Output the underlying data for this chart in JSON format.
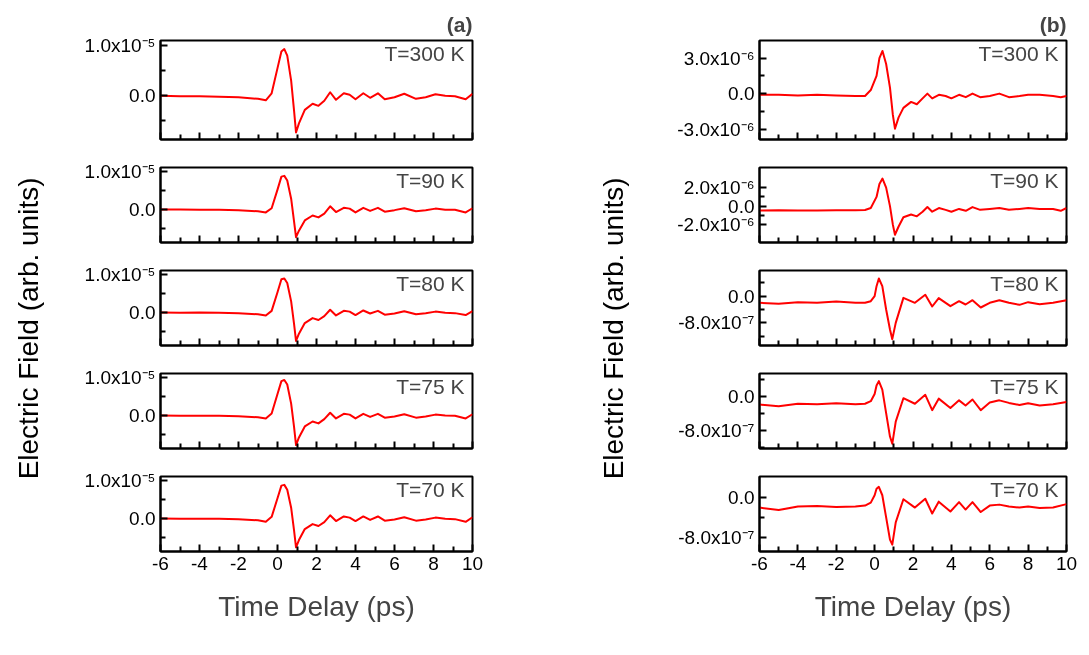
{
  "chart_data": [
    {
      "type": "line",
      "title": "(a)",
      "color": "#ff0000",
      "tick_labels": "y",
      "annotations": [
        "T=300 K"
      ],
      "xlim": [
        -6,
        10
      ],
      "ylim": [
        -8.7e-06,
        1.1e-05
      ],
      "xticks": [
        -6,
        {
          "value": -5,
          "label": null
        },
        -4,
        {
          "value": -3,
          "label": null
        },
        -2,
        {
          "value": -1,
          "label": null
        },
        0,
        {
          "value": 1,
          "label": null
        },
        2,
        {
          "value": 3,
          "label": null
        },
        4,
        {
          "value": 5,
          "label": null
        },
        6,
        {
          "value": 7,
          "label": null
        },
        8,
        {
          "value": 9,
          "label": null
        },
        10
      ],
      "yticks": [
        {
          "value": -5e-06,
          "label": null
        },
        {
          "value": 0,
          "label": "0.0"
        },
        {
          "value": 5e-06,
          "label": null
        },
        {
          "value": 1e-05,
          "label": "1.0x10⁻⁵"
        }
      ],
      "x": [
        -6,
        -5,
        -4,
        -3,
        -2,
        -1,
        -0.6,
        -0.3,
        0,
        0.2,
        0.35,
        0.5,
        0.7,
        0.85,
        0.95,
        1.1,
        1.4,
        1.8,
        2.1,
        2.4,
        2.7,
        3.0,
        3.4,
        3.7,
        4.0,
        4.4,
        4.75,
        5.15,
        5.5,
        6.0,
        6.5,
        7.1,
        7.6,
        8.1,
        8.6,
        9.1,
        9.65,
        10
      ],
      "values": [
        0,
        -1e-07,
        -1e-07,
        -2e-07,
        -3e-07,
        -6e-07,
        -9e-07,
        5e-07,
        5.5e-06,
        8.8e-06,
        9.3e-06,
        8e-06,
        3e-06,
        -3e-06,
        -7.3e-06,
        -5.5e-06,
        -2.8e-06,
        -1.6e-06,
        -2e-06,
        -1e-06,
        7e-07,
        -8e-07,
        5e-07,
        2e-07,
        -7e-07,
        5e-07,
        -4e-07,
        5e-07,
        -7e-07,
        -3e-07,
        4e-07,
        -6e-07,
        -3e-07,
        3e-07,
        0,
        -1e-07,
        -7e-07,
        4e-07
      ]
    },
    {
      "type": "line",
      "color": "#ff0000",
      "tick_labels": "y",
      "annotations": [
        "T=90 K"
      ],
      "xlim": [
        -6,
        10
      ],
      "ylim": [
        -8.7e-06,
        1.1e-05
      ],
      "xticks": [
        -6,
        {
          "value": -5,
          "label": null
        },
        -4,
        {
          "value": -3,
          "label": null
        },
        -2,
        {
          "value": -1,
          "label": null
        },
        0,
        {
          "value": 1,
          "label": null
        },
        2,
        {
          "value": 3,
          "label": null
        },
        4,
        {
          "value": 5,
          "label": null
        },
        6,
        {
          "value": 7,
          "label": null
        },
        8,
        {
          "value": 9,
          "label": null
        },
        10
      ],
      "yticks": [
        {
          "value": -5e-06,
          "label": null
        },
        {
          "value": 0,
          "label": "0.0"
        },
        {
          "value": 5e-06,
          "label": null
        },
        {
          "value": 1e-05,
          "label": "1.0x10⁻⁵"
        }
      ],
      "x": [
        -6,
        -5,
        -4,
        -3,
        -2,
        -1,
        -0.6,
        -0.3,
        0,
        0.2,
        0.35,
        0.5,
        0.7,
        0.85,
        0.95,
        1.1,
        1.4,
        1.8,
        2.1,
        2.4,
        2.7,
        3.0,
        3.4,
        3.7,
        4.0,
        4.4,
        4.75,
        5.15,
        5.5,
        6.0,
        6.5,
        7.1,
        7.6,
        8.1,
        8.6,
        9.1,
        9.65,
        10
      ],
      "values": [
        0,
        0,
        -1e-07,
        -1e-07,
        -2e-07,
        -5e-07,
        -8e-07,
        3e-07,
        5.2e-06,
        8.6e-06,
        8.8e-06,
        7.6e-06,
        2.8e-06,
        -3.2e-06,
        -7.3e-06,
        -5.6e-06,
        -2.9e-06,
        -1.6e-06,
        -2.1e-06,
        -1.1e-06,
        8e-07,
        -7e-07,
        4e-07,
        2e-07,
        -8e-07,
        4e-07,
        -4e-07,
        4e-07,
        -6e-07,
        -2e-07,
        3e-07,
        -5e-07,
        -2e-07,
        2e-07,
        -1e-07,
        -1e-07,
        -8e-07,
        3e-07
      ]
    },
    {
      "type": "line",
      "color": "#ff0000",
      "tick_labels": "y",
      "ylabel": "Electric Field (arb. units)",
      "annotations": [
        "T=80 K"
      ],
      "xlim": [
        -6,
        10
      ],
      "ylim": [
        -8.7e-06,
        1.1e-05
      ],
      "xticks": [
        -6,
        {
          "value": -5,
          "label": null
        },
        -4,
        {
          "value": -3,
          "label": null
        },
        -2,
        {
          "value": -1,
          "label": null
        },
        0,
        {
          "value": 1,
          "label": null
        },
        2,
        {
          "value": 3,
          "label": null
        },
        4,
        {
          "value": 5,
          "label": null
        },
        6,
        {
          "value": 7,
          "label": null
        },
        8,
        {
          "value": 9,
          "label": null
        },
        10
      ],
      "yticks": [
        {
          "value": -5e-06,
          "label": null
        },
        {
          "value": 0,
          "label": "0.0"
        },
        {
          "value": 5e-06,
          "label": null
        },
        {
          "value": 1e-05,
          "label": "1.0x10⁻⁵"
        }
      ],
      "x": [
        -6,
        -5,
        -4,
        -3,
        -2,
        -1,
        -0.6,
        -0.3,
        0,
        0.2,
        0.35,
        0.5,
        0.7,
        0.85,
        0.95,
        1.1,
        1.4,
        1.8,
        2.1,
        2.4,
        2.7,
        3.0,
        3.4,
        3.7,
        4.0,
        4.4,
        4.75,
        5.15,
        5.5,
        6.0,
        6.5,
        7.1,
        7.6,
        8.1,
        8.6,
        9.1,
        9.65,
        10
      ],
      "values": [
        0,
        -1e-07,
        0,
        -1e-07,
        -2e-07,
        -5e-07,
        -8e-07,
        4e-07,
        5.3e-06,
        8.7e-06,
        8.9e-06,
        7.7e-06,
        2.9e-06,
        -3.1e-06,
        -7.5e-06,
        -5.6e-06,
        -2.8e-06,
        -1.5e-06,
        -2e-06,
        -1e-06,
        7e-07,
        -8e-07,
        4e-07,
        2e-07,
        -7e-07,
        5e-07,
        -3e-07,
        4e-07,
        -6e-07,
        -3e-07,
        3e-07,
        -5e-07,
        -2e-07,
        2e-07,
        -1e-07,
        -2e-07,
        -7e-07,
        3e-07
      ]
    },
    {
      "type": "line",
      "color": "#ff0000",
      "tick_labels": "y",
      "annotations": [
        "T=75 K"
      ],
      "xlim": [
        -6,
        10
      ],
      "ylim": [
        -8.7e-06,
        1.1e-05
      ],
      "xticks": [
        -6,
        {
          "value": -5,
          "label": null
        },
        -4,
        {
          "value": -3,
          "label": null
        },
        -2,
        {
          "value": -1,
          "label": null
        },
        0,
        {
          "value": 1,
          "label": null
        },
        2,
        {
          "value": 3,
          "label": null
        },
        4,
        {
          "value": 5,
          "label": null
        },
        6,
        {
          "value": 7,
          "label": null
        },
        8,
        {
          "value": 9,
          "label": null
        },
        10
      ],
      "yticks": [
        {
          "value": -5e-06,
          "label": null
        },
        {
          "value": 0,
          "label": "0.0"
        },
        {
          "value": 5e-06,
          "label": null
        },
        {
          "value": 1e-05,
          "label": "1.0x10⁻⁵"
        }
      ],
      "x": [
        -6,
        -5,
        -4,
        -3,
        -2,
        -1,
        -0.6,
        -0.3,
        0,
        0.2,
        0.35,
        0.5,
        0.7,
        0.85,
        0.95,
        1.1,
        1.4,
        1.8,
        2.1,
        2.4,
        2.7,
        3.0,
        3.4,
        3.7,
        4.0,
        4.4,
        4.75,
        5.15,
        5.5,
        6.0,
        6.5,
        7.1,
        7.6,
        8.1,
        8.6,
        9.1,
        9.65,
        10
      ],
      "values": [
        0,
        -1e-07,
        -1e-07,
        -1e-07,
        -2e-07,
        -5e-07,
        -8e-07,
        5e-07,
        5.6e-06,
        9e-06,
        9.3e-06,
        8.1e-06,
        3.1e-06,
        -3.1e-06,
        -7.8e-06,
        -5.8e-06,
        -2.9e-06,
        -1.6e-06,
        -2.1e-06,
        -1e-06,
        7e-07,
        -8e-07,
        4e-07,
        2e-07,
        -8e-07,
        4e-07,
        -4e-07,
        4e-07,
        -6e-07,
        -3e-07,
        3e-07,
        -6e-07,
        -3e-07,
        2e-07,
        0,
        -1e-07,
        -8e-07,
        3e-07
      ]
    },
    {
      "type": "line",
      "color": "#ff0000",
      "xlabel": "Time Delay (ps)",
      "annotations": [
        "T=70 K"
      ],
      "xlim": [
        -6,
        10
      ],
      "ylim": [
        -8.7e-06,
        1.1e-05
      ],
      "xticks": [
        -6,
        {
          "value": -5,
          "label": null
        },
        -4,
        {
          "value": -3,
          "label": null
        },
        -2,
        {
          "value": -1,
          "label": null
        },
        0,
        {
          "value": 1,
          "label": null
        },
        2,
        {
          "value": 3,
          "label": null
        },
        4,
        {
          "value": 5,
          "label": null
        },
        6,
        {
          "value": 7,
          "label": null
        },
        8,
        {
          "value": 9,
          "label": null
        },
        10
      ],
      "yticks": [
        {
          "value": -5e-06,
          "label": null
        },
        {
          "value": 0,
          "label": "0.0"
        },
        {
          "value": 5e-06,
          "label": null
        },
        {
          "value": 1e-05,
          "label": "1.0x10⁻⁵"
        }
      ],
      "x": [
        -6,
        -5,
        -4,
        -3,
        -2,
        -1,
        -0.6,
        -0.3,
        0,
        0.2,
        0.35,
        0.5,
        0.7,
        0.85,
        0.95,
        1.1,
        1.4,
        1.8,
        2.1,
        2.4,
        2.7,
        3.0,
        3.4,
        3.7,
        4.0,
        4.4,
        4.75,
        5.15,
        5.5,
        6.0,
        6.5,
        7.1,
        7.6,
        8.1,
        8.6,
        9.1,
        9.65,
        10
      ],
      "values": [
        0,
        -1e-07,
        -1e-07,
        -1e-07,
        -2e-07,
        -5e-07,
        -9e-07,
        4e-07,
        5.3e-06,
        8.6e-06,
        8.8e-06,
        7.5e-06,
        2.8e-06,
        -3.2e-06,
        -7.6e-06,
        -5.7e-06,
        -2.8e-06,
        -1.5e-06,
        -2e-06,
        -1e-06,
        8e-07,
        -7e-07,
        5e-07,
        2e-07,
        -7e-07,
        5e-07,
        -4e-07,
        5e-07,
        -6e-07,
        -3e-07,
        3e-07,
        -6e-07,
        -3e-07,
        2e-07,
        -1e-07,
        -2e-07,
        -9e-07,
        3e-07
      ]
    },
    {
      "type": "line",
      "title": "(b)",
      "color": "#ff0000",
      "tick_labels": "y",
      "annotations": [
        "T=300 K"
      ],
      "xlim": [
        -6,
        10
      ],
      "ylim": [
        -3.87e-06,
        4.48e-06
      ],
      "xticks": [
        -6,
        {
          "value": -5,
          "label": null
        },
        -4,
        {
          "value": -3,
          "label": null
        },
        -2,
        {
          "value": -1,
          "label": null
        },
        0,
        {
          "value": 1,
          "label": null
        },
        2,
        {
          "value": 3,
          "label": null
        },
        4,
        {
          "value": 5,
          "label": null
        },
        6,
        {
          "value": 7,
          "label": null
        },
        8,
        {
          "value": 9,
          "label": null
        },
        10
      ],
      "yticks": [
        {
          "value": -3e-06,
          "label": "-3.0x10⁻⁶"
        },
        {
          "value": -1.5e-06,
          "label": null
        },
        {
          "value": 0,
          "label": "0.0"
        },
        {
          "value": 1.5e-06,
          "label": null
        },
        {
          "value": 3e-06,
          "label": "3.0x10⁻⁶"
        }
      ],
      "x": [
        -6,
        -5,
        -4,
        -3,
        -2,
        -1,
        -0.5,
        -0.2,
        0.1,
        0.25,
        0.41,
        0.6,
        0.8,
        0.95,
        1.06,
        1.25,
        1.5,
        1.9,
        2.2,
        2.5,
        2.75,
        3.0,
        3.35,
        3.7,
        4.0,
        4.4,
        4.75,
        5.1,
        5.5,
        6.0,
        6.5,
        7.0,
        7.55,
        8.0,
        8.6,
        9.3,
        9.7,
        10
      ],
      "values": [
        -1e-07,
        -1e-07,
        -1.5e-07,
        -1e-07,
        -1.5e-07,
        -2e-07,
        -2e-07,
        3e-07,
        1.5e-06,
        3e-06,
        3.6e-06,
        2.5e-06,
        5e-07,
        -1.8e-06,
        -2.96e-06,
        -2e-06,
        -1.2e-06,
        -7e-07,
        -9e-07,
        -4e-07,
        0,
        -4e-07,
        -1e-07,
        -2e-07,
        -4e-07,
        -1e-07,
        -3e-07,
        0,
        -3e-07,
        -2e-07,
        0,
        -3e-07,
        -2e-07,
        -1e-07,
        -1e-07,
        -2e-07,
        -3e-07,
        -2e-07
      ]
    },
    {
      "type": "line",
      "color": "#ff0000",
      "tick_labels": "y",
      "annotations": [
        "T=90 K"
      ],
      "xlim": [
        -6,
        10
      ],
      "ylim": [
        -3.93e-06,
        4.18e-06
      ],
      "xticks": [
        -6,
        {
          "value": -5,
          "label": null
        },
        -4,
        {
          "value": -3,
          "label": null
        },
        -2,
        {
          "value": -1,
          "label": null
        },
        0,
        {
          "value": 1,
          "label": null
        },
        2,
        {
          "value": 3,
          "label": null
        },
        4,
        {
          "value": 5,
          "label": null
        },
        6,
        {
          "value": 7,
          "label": null
        },
        8,
        {
          "value": 9,
          "label": null
        },
        10
      ],
      "yticks": [
        {
          "value": -2e-06,
          "label": "-2.0x10⁻⁶"
        },
        {
          "value": -1e-06,
          "label": null
        },
        {
          "value": 0,
          "label": "0.0"
        },
        {
          "value": 1e-06,
          "label": null
        },
        {
          "value": 2e-06,
          "label": "2.0x10⁻⁶"
        }
      ],
      "x": [
        -6,
        -5,
        -4,
        -3,
        -2,
        -1,
        -0.5,
        -0.2,
        0.1,
        0.25,
        0.41,
        0.6,
        0.8,
        0.95,
        1.06,
        1.25,
        1.5,
        1.9,
        2.2,
        2.5,
        2.75,
        3.0,
        3.35,
        3.7,
        4.0,
        4.4,
        4.75,
        5.1,
        5.5,
        6.0,
        6.5,
        7.0,
        7.55,
        8.0,
        8.6,
        9.3,
        9.7,
        10
      ],
      "values": [
        -4.7e-07,
        -4.5e-07,
        -4.8e-07,
        -4.6e-07,
        -4.5e-07,
        -4.5e-07,
        -4.2e-07,
        -2e-07,
        1e-06,
        2.4e-06,
        2.98e-06,
        2e-06,
        0,
        -2e-06,
        -3.09e-06,
        -2.2e-06,
        -1.2e-06,
        -9e-07,
        -1.1e-06,
        -6e-07,
        -1e-07,
        -6e-07,
        -2e-07,
        -4e-07,
        -6e-07,
        -3e-07,
        -5e-07,
        -1e-07,
        -4e-07,
        -3e-07,
        -2e-07,
        -4e-07,
        -3e-07,
        -2e-07,
        -3e-07,
        -3e-07,
        -5e-07,
        -2e-07
      ]
    },
    {
      "type": "line",
      "color": "#ff0000",
      "tick_labels": "y",
      "ylabel": "Electric Field (arb. units)",
      "annotations": [
        "T=80 K"
      ],
      "xlim": [
        -6,
        10
      ],
      "ylim": [
        -1.48e-06,
        7.7e-07
      ],
      "xticks": [
        -6,
        {
          "value": -5,
          "label": null
        },
        -4,
        {
          "value": -3,
          "label": null
        },
        -2,
        {
          "value": -1,
          "label": null
        },
        0,
        {
          "value": 1,
          "label": null
        },
        2,
        {
          "value": 3,
          "label": null
        },
        4,
        {
          "value": 5,
          "label": null
        },
        6,
        {
          "value": 7,
          "label": null
        },
        8,
        {
          "value": 9,
          "label": null
        },
        10
      ],
      "yticks": [
        {
          "value": -1.2e-06,
          "label": null
        },
        {
          "value": -8e-07,
          "label": "-8.0x10⁻⁷"
        },
        {
          "value": -4e-07,
          "label": null
        },
        {
          "value": 0,
          "label": "0.0"
        },
        {
          "value": 4e-07,
          "label": null
        }
      ],
      "x": [
        -6,
        -5,
        -4,
        -3,
        -2,
        -1,
        -0.5,
        -0.2,
        0,
        0.1,
        0.22,
        0.4,
        0.6,
        0.8,
        0.92,
        1.1,
        1.5,
        2.1,
        2.64,
        3.0,
        3.34,
        3.95,
        4.4,
        4.74,
        5.1,
        5.53,
        6.0,
        6.5,
        7.0,
        7.55,
        8.0,
        8.6,
        9.3,
        10
      ],
      "values": [
        -2e-07,
        -2.3e-07,
        -1.8e-07,
        -2e-07,
        -1.6e-07,
        -2e-07,
        -2e-07,
        -1.5e-07,
        0,
        3e-07,
        5.3e-07,
        3e-07,
        -4e-07,
        -1e-06,
        -1.29e-06,
        -8e-07,
        -5e-08,
        -2e-07,
        4e-08,
        -3.1e-07,
        -6e-08,
        -3e-07,
        -1.5e-07,
        -2.5e-07,
        -1.2e-07,
        -3.4e-07,
        -2e-07,
        -1.2e-07,
        -2e-07,
        -2.6e-07,
        -1.8e-07,
        -2.4e-07,
        -2e-07,
        -1.2e-07
      ]
    },
    {
      "type": "line",
      "color": "#ff0000",
      "tick_labels": "y",
      "annotations": [
        "T=75 K"
      ],
      "xlim": [
        -6,
        10
      ],
      "ylim": [
        -1.23e-06,
        5.3e-07
      ],
      "xticks": [
        -6,
        {
          "value": -5,
          "label": null
        },
        -4,
        {
          "value": -3,
          "label": null
        },
        -2,
        {
          "value": -1,
          "label": null
        },
        0,
        {
          "value": 1,
          "label": null
        },
        2,
        {
          "value": 3,
          "label": null
        },
        4,
        {
          "value": 5,
          "label": null
        },
        6,
        {
          "value": 7,
          "label": null
        },
        8,
        {
          "value": 9,
          "label": null
        },
        10
      ],
      "yticks": [
        {
          "value": -1.2e-06,
          "label": null
        },
        {
          "value": -8e-07,
          "label": "-8.0x10⁻⁷"
        },
        {
          "value": -4e-07,
          "label": null
        },
        {
          "value": 0,
          "label": "0.0"
        },
        {
          "value": 4e-07,
          "label": null
        }
      ],
      "x": [
        -6,
        -5,
        -4,
        -3,
        -2,
        -1,
        -0.5,
        -0.2,
        0,
        0.1,
        0.22,
        0.4,
        0.6,
        0.8,
        0.92,
        1.1,
        1.5,
        2.1,
        2.64,
        3.0,
        3.34,
        3.95,
        4.4,
        4.74,
        5.1,
        5.53,
        6.0,
        6.5,
        7.0,
        7.55,
        8.0,
        8.6,
        9.3,
        10
      ],
      "values": [
        -2e-07,
        -2.4e-07,
        -1.8e-07,
        -1.9e-07,
        -1.7e-07,
        -1.9e-07,
        -1.8e-07,
        -1.2e-07,
        5e-08,
        2.5e-07,
        3.5e-07,
        1.5e-07,
        -4e-07,
        -9.5e-07,
        -1.12e-06,
        -6e-07,
        -5e-08,
        -1.8e-07,
        3e-08,
        -3.3e-07,
        -6e-08,
        -2.8e-07,
        -1e-07,
        -2.2e-07,
        -8e-08,
        -3.3e-07,
        -1.5e-07,
        -1e-07,
        -1.6e-07,
        -2.1e-07,
        -1.7e-07,
        -2.2e-07,
        -1.9e-07,
        -1.4e-07
      ]
    },
    {
      "type": "line",
      "color": "#ff0000",
      "xlabel": "Time Delay (ps)",
      "annotations": [
        "T=70 K"
      ],
      "xlim": [
        -6,
        10
      ],
      "ylim": [
        -1.09e-06,
        4.3e-07
      ],
      "xticks": [
        -6,
        {
          "value": -5,
          "label": null
        },
        -4,
        {
          "value": -3,
          "label": null
        },
        -2,
        {
          "value": -1,
          "label": null
        },
        0,
        {
          "value": 1,
          "label": null
        },
        2,
        {
          "value": 3,
          "label": null
        },
        4,
        {
          "value": 5,
          "label": null
        },
        6,
        {
          "value": 7,
          "label": null
        },
        8,
        {
          "value": 9,
          "label": null
        },
        10
      ],
      "yticks": [
        {
          "value": -8e-07,
          "label": "-8.0x10⁻⁷"
        },
        {
          "value": -4e-07,
          "label": null
        },
        {
          "value": 0,
          "label": "0.0"
        }
      ],
      "x": [
        -6,
        -5,
        -4,
        -3,
        -2,
        -1,
        -0.5,
        -0.2,
        0,
        0.1,
        0.22,
        0.4,
        0.6,
        0.8,
        0.92,
        1.1,
        1.5,
        2.1,
        2.64,
        3.0,
        3.34,
        3.95,
        4.4,
        4.74,
        5.1,
        5.53,
        6.0,
        6.5,
        7.0,
        7.55,
        8.0,
        8.6,
        9.3,
        10
      ],
      "values": [
        -2e-07,
        -2.5e-07,
        -1.8e-07,
        -1.7e-07,
        -1.9e-07,
        -1.8e-07,
        -1.6e-07,
        -1e-07,
        5e-08,
        1.8e-07,
        2.2e-07,
        5e-08,
        -4e-07,
        -8.5e-07,
        -9.5e-07,
        -5e-07,
        -3e-08,
        -2e-07,
        -2e-08,
        -3.2e-07,
        -8e-08,
        -2.8e-07,
        -9e-08,
        -2.4e-07,
        -9e-08,
        -2.9e-07,
        -1.6e-07,
        -1.4e-07,
        -1.8e-07,
        -2e-07,
        -1.8e-07,
        -2.1e-07,
        -2e-07,
        -1.3e-07
      ]
    }
  ]
}
